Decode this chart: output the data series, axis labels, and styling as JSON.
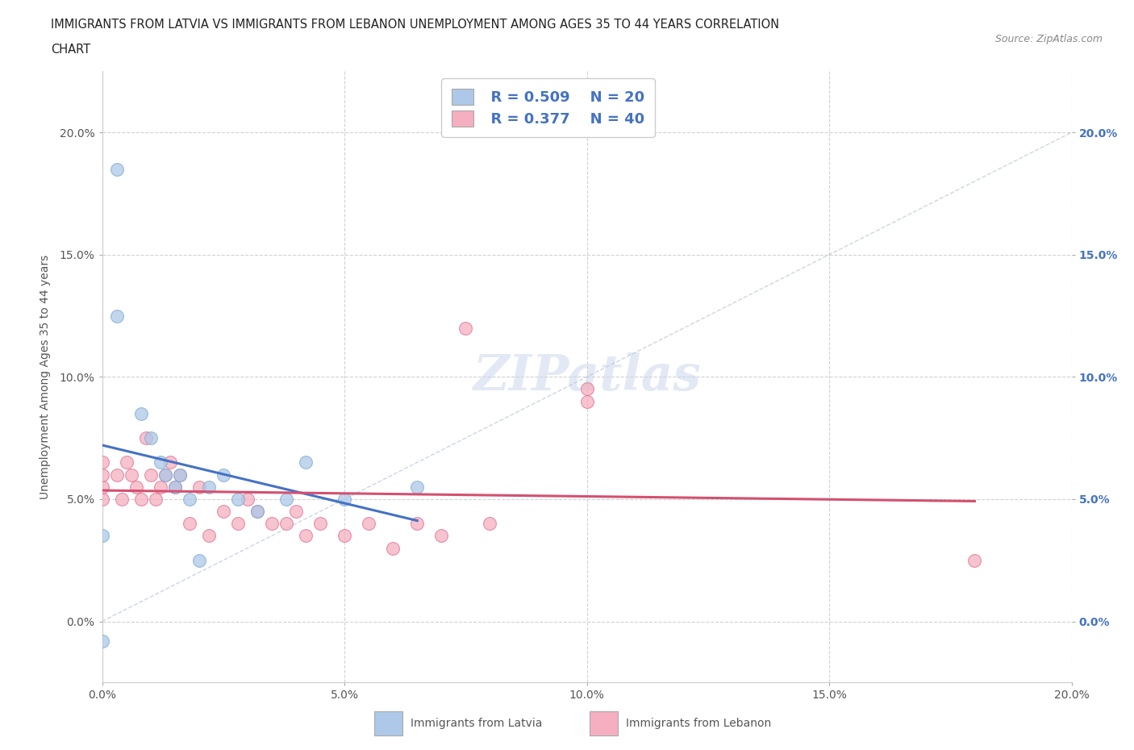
{
  "title_line1": "IMMIGRANTS FROM LATVIA VS IMMIGRANTS FROM LEBANON UNEMPLOYMENT AMONG AGES 35 TO 44 YEARS CORRELATION",
  "title_line2": "CHART",
  "source": "Source: ZipAtlas.com",
  "ylabel": "Unemployment Among Ages 35 to 44 years",
  "xmin": 0.0,
  "xmax": 0.2,
  "ymin": -0.025,
  "ymax": 0.225,
  "xticks": [
    0.0,
    0.05,
    0.1,
    0.15,
    0.2
  ],
  "yticks": [
    0.0,
    0.05,
    0.1,
    0.15,
    0.2
  ],
  "xtick_labels": [
    "0.0%",
    "5.0%",
    "10.0%",
    "15.0%",
    "20.0%"
  ],
  "ytick_labels": [
    "0.0%",
    "5.0%",
    "10.0%",
    "15.0%",
    "20.0%"
  ],
  "latvia_color": "#adc8e8",
  "lebanon_color": "#f5afc0",
  "latvia_edge": "#7aaacf",
  "lebanon_edge": "#e07090",
  "trend_latvia_color": "#4472c4",
  "trend_lebanon_color": "#d45070",
  "legend_R_latvia": "R = 0.509",
  "legend_N_latvia": "N = 20",
  "legend_R_lebanon": "R = 0.377",
  "legend_N_lebanon": "N = 40",
  "legend_text_color": "#4472c4",
  "latvia_x": [
    0.003,
    0.003,
    0.008,
    0.01,
    0.012,
    0.013,
    0.015,
    0.016,
    0.018,
    0.02,
    0.022,
    0.025,
    0.028,
    0.032,
    0.038,
    0.042,
    0.05,
    0.065,
    0.0,
    0.0
  ],
  "latvia_y": [
    0.185,
    0.125,
    0.085,
    0.075,
    0.065,
    0.06,
    0.055,
    0.06,
    0.05,
    0.025,
    0.055,
    0.06,
    0.05,
    0.045,
    0.05,
    0.065,
    0.05,
    0.055,
    0.035,
    -0.008
  ],
  "lebanon_x": [
    0.0,
    0.0,
    0.0,
    0.0,
    0.003,
    0.004,
    0.005,
    0.006,
    0.007,
    0.008,
    0.009,
    0.01,
    0.011,
    0.012,
    0.013,
    0.014,
    0.015,
    0.016,
    0.018,
    0.02,
    0.022,
    0.025,
    0.028,
    0.03,
    0.032,
    0.035,
    0.038,
    0.04,
    0.042,
    0.045,
    0.05,
    0.055,
    0.06,
    0.065,
    0.07,
    0.075,
    0.08,
    0.1,
    0.1,
    0.18
  ],
  "lebanon_y": [
    0.05,
    0.055,
    0.06,
    0.065,
    0.06,
    0.05,
    0.065,
    0.06,
    0.055,
    0.05,
    0.075,
    0.06,
    0.05,
    0.055,
    0.06,
    0.065,
    0.055,
    0.06,
    0.04,
    0.055,
    0.035,
    0.045,
    0.04,
    0.05,
    0.045,
    0.04,
    0.04,
    0.045,
    0.035,
    0.04,
    0.035,
    0.04,
    0.03,
    0.04,
    0.035,
    0.12,
    0.04,
    0.095,
    0.09,
    0.025
  ],
  "marker_size": 130,
  "bg_color": "#ffffff",
  "grid_color": "#cccccc"
}
